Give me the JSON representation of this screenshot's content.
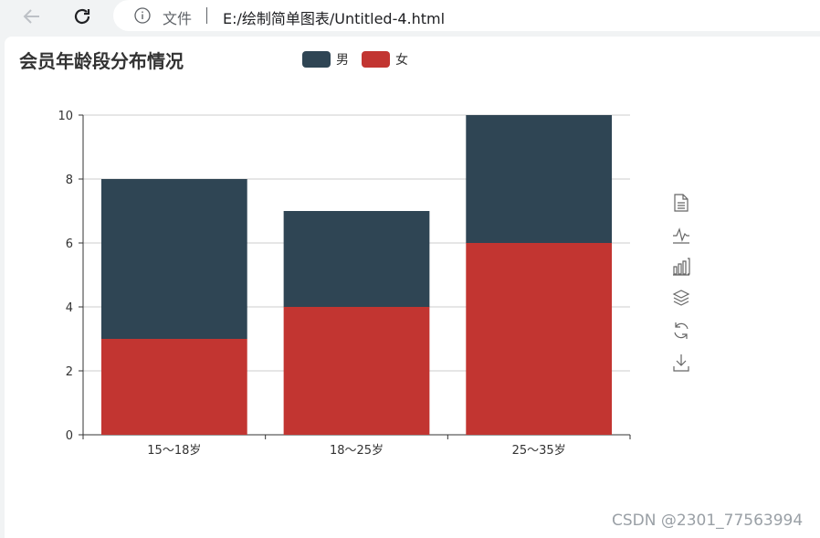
{
  "browser": {
    "info_label": "文件",
    "url": "E:/绘制简单图表/Untitled-4.html"
  },
  "watermark": "CSDN @2301_77563994",
  "chart_data": {
    "type": "bar",
    "stacked": true,
    "title": "会员年龄段分布情况",
    "categories": [
      "15～18岁",
      "18～25岁",
      "25～35岁"
    ],
    "series": [
      {
        "name": "男",
        "values": [
          5,
          3,
          4
        ],
        "color": "#2f4554"
      },
      {
        "name": "女",
        "values": [
          3,
          4,
          6
        ],
        "color": "#c23531"
      }
    ],
    "ylim": [
      0,
      10
    ],
    "yticks": [
      0,
      2,
      4,
      6,
      8,
      10
    ],
    "grid": true,
    "legend_position": "top"
  },
  "toolbox": [
    "data-view-icon",
    "line-chart-icon",
    "bar-chart-icon",
    "stack-icon",
    "restore-icon",
    "save-image-icon"
  ]
}
